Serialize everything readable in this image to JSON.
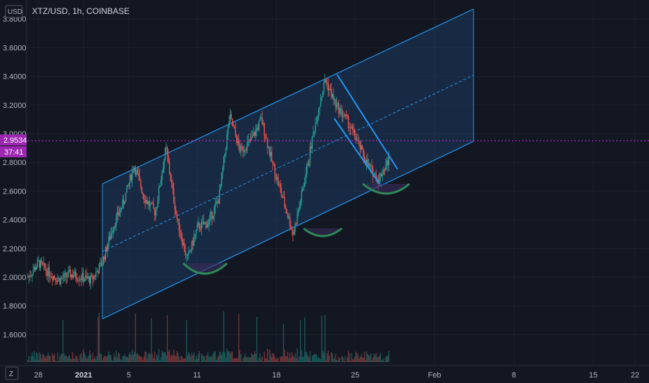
{
  "header": {
    "symbol_line": "XTZ/USD, 1h, COINBASE",
    "currency_button": "USD"
  },
  "colors": {
    "background": "#131722",
    "up_candle": "#26a69a",
    "down_candle": "#ef5350",
    "channel_line": "#2196f3",
    "channel_fill": "#1e3a5f",
    "support_arc": "#2e8b57",
    "price_line": "#9c27b0"
  },
  "price_tag": {
    "price": "2.9534",
    "countdown": "37:41"
  },
  "footer": {
    "z_button": "Z"
  },
  "chart_data": {
    "type": "candlestick",
    "title": "XTZ/USD, 1h, COINBASE",
    "y_axis": {
      "ticks": [
        "3.8000",
        "3.6000",
        "3.4000",
        "3.2000",
        "3.0000",
        "2.8000",
        "2.6000",
        "2.4000",
        "2.2000",
        "2.0000",
        "1.8000",
        "1.6000"
      ],
      "range": [
        1.4,
        3.86
      ]
    },
    "x_axis": {
      "ticks": [
        "28",
        "2021",
        "5",
        "11",
        "18",
        "25",
        "Feb",
        "8",
        "15",
        "22"
      ],
      "bold_ticks": [
        "2021"
      ]
    },
    "current_price": 2.9534,
    "approx_close_path": [
      {
        "t": "Dec 27 00:00",
        "p": 2.0
      },
      {
        "t": "Dec 28 00:00",
        "p": 2.1
      },
      {
        "t": "Dec 29 00:00",
        "p": 2.03
      },
      {
        "t": "Dec 30 00:00",
        "p": 1.98
      },
      {
        "t": "Dec 31 00:00",
        "p": 2.02
      },
      {
        "t": "Jan 1 00:00",
        "p": 2.0
      },
      {
        "t": "Jan 2 00:00",
        "p": 1.98
      },
      {
        "t": "Jan 3 00:00",
        "p": 2.1
      },
      {
        "t": "Jan 4 00:00",
        "p": 2.35
      },
      {
        "t": "Jan 5 12:00",
        "p": 2.52
      },
      {
        "t": "Jan 6 12:00",
        "p": 2.78
      },
      {
        "t": "Jan 7 12:00",
        "p": 2.55
      },
      {
        "t": "Jan 9 00:00",
        "p": 2.45
      },
      {
        "t": "Jan 10 12:00",
        "p": 2.9
      },
      {
        "t": "Jan 11 06:00",
        "p": 2.42
      },
      {
        "t": "Jan 12 00:00",
        "p": 2.12
      },
      {
        "t": "Jan 13 00:00",
        "p": 2.35
      },
      {
        "t": "Jan 14 00:00",
        "p": 2.38
      },
      {
        "t": "Jan 15 00:00",
        "p": 2.55
      },
      {
        "t": "Jan 16 00:00",
        "p": 3.12
      },
      {
        "t": "Jan 17 00:00",
        "p": 2.88
      },
      {
        "t": "Jan 18 00:00",
        "p": 2.95
      },
      {
        "t": "Jan 19 00:00",
        "p": 3.1
      },
      {
        "t": "Jan 20 00:00",
        "p": 2.8
      },
      {
        "t": "Jan 21 00:00",
        "p": 2.55
      },
      {
        "t": "Jan 22 00:00",
        "p": 2.3
      },
      {
        "t": "Jan 22 12:00",
        "p": 2.65
      },
      {
        "t": "Jan 23 00:00",
        "p": 3.05
      },
      {
        "t": "Jan 23 12:00",
        "p": 3.38
      },
      {
        "t": "Jan 24 00:00",
        "p": 3.2
      },
      {
        "t": "Jan 25 00:00",
        "p": 3.1
      },
      {
        "t": "Jan 26 00:00",
        "p": 2.95
      },
      {
        "t": "Jan 27 00:00",
        "p": 2.78
      },
      {
        "t": "Jan 27 12:00",
        "p": 2.68
      },
      {
        "t": "Jan 28 00:00",
        "p": 2.82
      }
    ],
    "volume": {
      "relative": true
    }
  }
}
